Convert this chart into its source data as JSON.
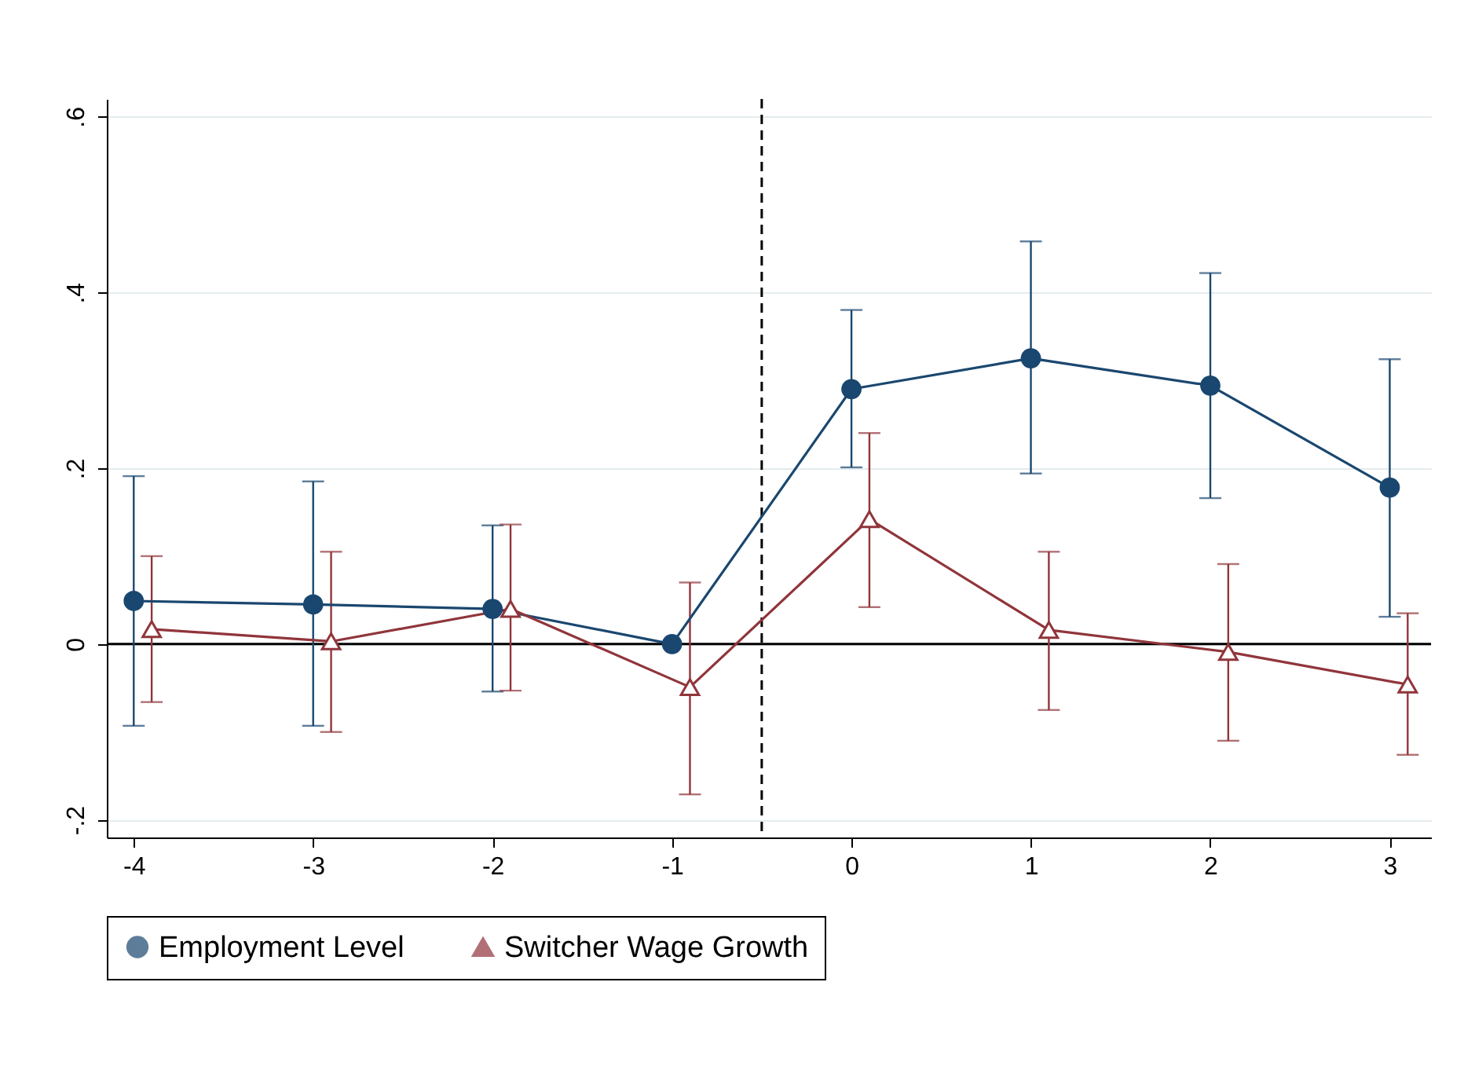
{
  "chart_data": {
    "type": "line",
    "xlim": [
      -4.15,
      3.23
    ],
    "xticks": [
      -4,
      -3,
      -2,
      -1,
      0,
      1,
      2,
      3
    ],
    "ylim": [
      -0.22,
      0.62
    ],
    "yticks": [
      {
        "value": -0.2,
        "label": "-.2"
      },
      0,
      {
        "value": 0.2,
        "label": ".2"
      },
      {
        "value": 0.4,
        "label": ".4"
      },
      {
        "value": 0.6,
        "label": ".6"
      }
    ],
    "grid": "y",
    "legend": "bottom",
    "series": [
      {
        "name": "Employment Level",
        "color": "#1a476f",
        "marker": "circle",
        "x": [
          -4,
          -3,
          -2,
          -1,
          0,
          1,
          2,
          3
        ],
        "values": [
          0.049,
          0.045,
          0.04,
          0,
          0.29,
          0.325,
          0.294,
          0.178
        ],
        "errors": [
          [
            -0.093,
            0.191
          ],
          [
            -0.093,
            0.185
          ],
          [
            -0.054,
            0.135
          ],
          null,
          [
            0.201,
            0.38
          ],
          [
            0.194,
            0.458
          ],
          [
            0.166,
            0.422
          ],
          [
            0.031,
            0.324
          ]
        ]
      },
      {
        "name": "Switcher Wage Growth",
        "color": "#90353b",
        "marker": "triangle",
        "x": [
          -3.9,
          -2.9,
          -1.9,
          -0.9,
          0.1,
          1.1,
          2.1,
          3.1
        ],
        "values": [
          0.017,
          0.003,
          0.04,
          -0.049,
          0.142,
          0.016,
          -0.009,
          -0.046
        ],
        "errors": [
          [
            -0.066,
            0.1
          ],
          [
            -0.1,
            0.105
          ],
          [
            -0.053,
            0.136
          ],
          [
            -0.171,
            0.07
          ],
          [
            0.042,
            0.24
          ],
          [
            -0.075,
            0.105
          ],
          [
            -0.11,
            0.091
          ],
          [
            -0.126,
            0.035
          ]
        ]
      }
    ],
    "ref_lines": [
      {
        "axis": "y",
        "value": 0,
        "color": "#000000",
        "line_style": "solid"
      },
      {
        "axis": "x",
        "value": -0.5,
        "color": "#000000",
        "line_style": "dashed"
      }
    ]
  }
}
